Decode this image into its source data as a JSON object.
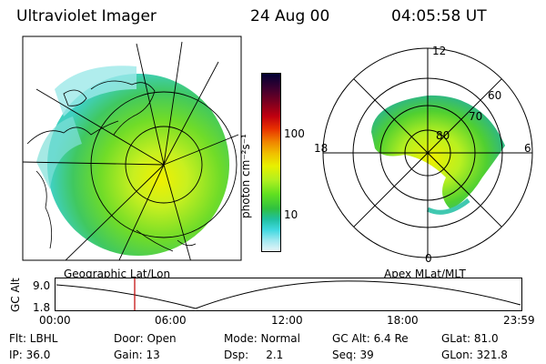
{
  "header": {
    "instrument": "Ultraviolet Imager",
    "date": "24 Aug 00",
    "time": "04:05:58 UT"
  },
  "colorbar": {
    "unit_label": "photon cm⁻²s⁻¹",
    "ticks": [
      "100",
      "10"
    ],
    "colors": [
      "#000033",
      "#3a0030",
      "#7a0020",
      "#c00010",
      "#e83000",
      "#f08000",
      "#f0c000",
      "#e8f000",
      "#b0f020",
      "#60e020",
      "#30c040",
      "#20c0a0",
      "#40d8e0",
      "#a0e8f0",
      "#e8f4f8"
    ]
  },
  "polar_plot": {
    "mlt_labels": [
      "12",
      "6",
      "0",
      "18"
    ],
    "lat_labels": [
      "60",
      "70",
      "80"
    ]
  },
  "timeline": {
    "left_label": "Geographic Lat/Lon",
    "right_label": "Apex MLat/MLT",
    "axis_label": "GC Alt",
    "y_ticks": [
      "9.0",
      "1.8"
    ],
    "x_ticks": [
      "00:00",
      "06:00",
      "12:00",
      "18:00",
      "23:59"
    ],
    "marker_color": "#c00000"
  },
  "info": {
    "flt": "Flt: LBHL",
    "door": "Door: Open",
    "mode": "Mode: Normal",
    "gc_alt": "GC Alt: 6.4 Re",
    "glat": "GLat:  81.0",
    "ip": "IP: 36.0",
    "gain": "Gain: 13",
    "dsp": "Dsp:     2.1",
    "seq": "Seq: 39",
    "glon": "GLon: 321.8"
  }
}
